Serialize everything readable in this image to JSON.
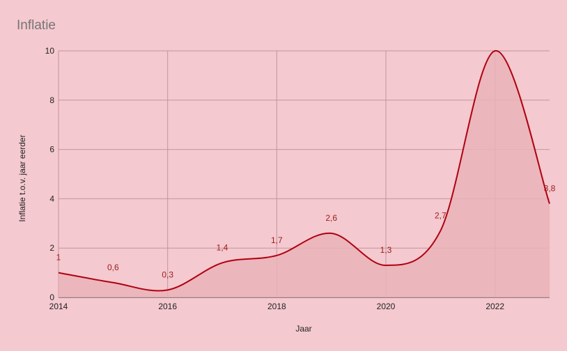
{
  "chart_data": {
    "type": "area",
    "title": "Inflatie",
    "xlabel": "Jaar",
    "ylabel": "Inflatie t.o.v. jaar eerder",
    "x": [
      2014,
      2015,
      2016,
      2017,
      2018,
      2019,
      2020,
      2021,
      2022,
      2023
    ],
    "series": [
      {
        "values": [
          1,
          0.6,
          0.3,
          1.4,
          1.7,
          2.6,
          1.3,
          2.7,
          10,
          3.8
        ],
        "labels": [
          "1",
          "0,6",
          "0,3",
          "1,4",
          "1,7",
          "2,6",
          "1,3",
          "2,7",
          "",
          "3,8"
        ]
      }
    ],
    "xlim": [
      2014,
      2023
    ],
    "ylim": [
      0,
      10
    ],
    "x_ticks": [
      "2014",
      "2016",
      "2018",
      "2020",
      "2022"
    ],
    "x_tick_values": [
      2014,
      2016,
      2018,
      2020,
      2022
    ],
    "y_ticks": [
      "0",
      "2",
      "4",
      "6",
      "8",
      "10"
    ],
    "y_tick_values": [
      0,
      2,
      4,
      6,
      8,
      10
    ],
    "grid": true,
    "colors": {
      "background": "#f4c9cf",
      "line": "#b00010",
      "fill": "#e9b3b9",
      "grid": "#c2959b",
      "label": "#9b1c1c"
    }
  }
}
